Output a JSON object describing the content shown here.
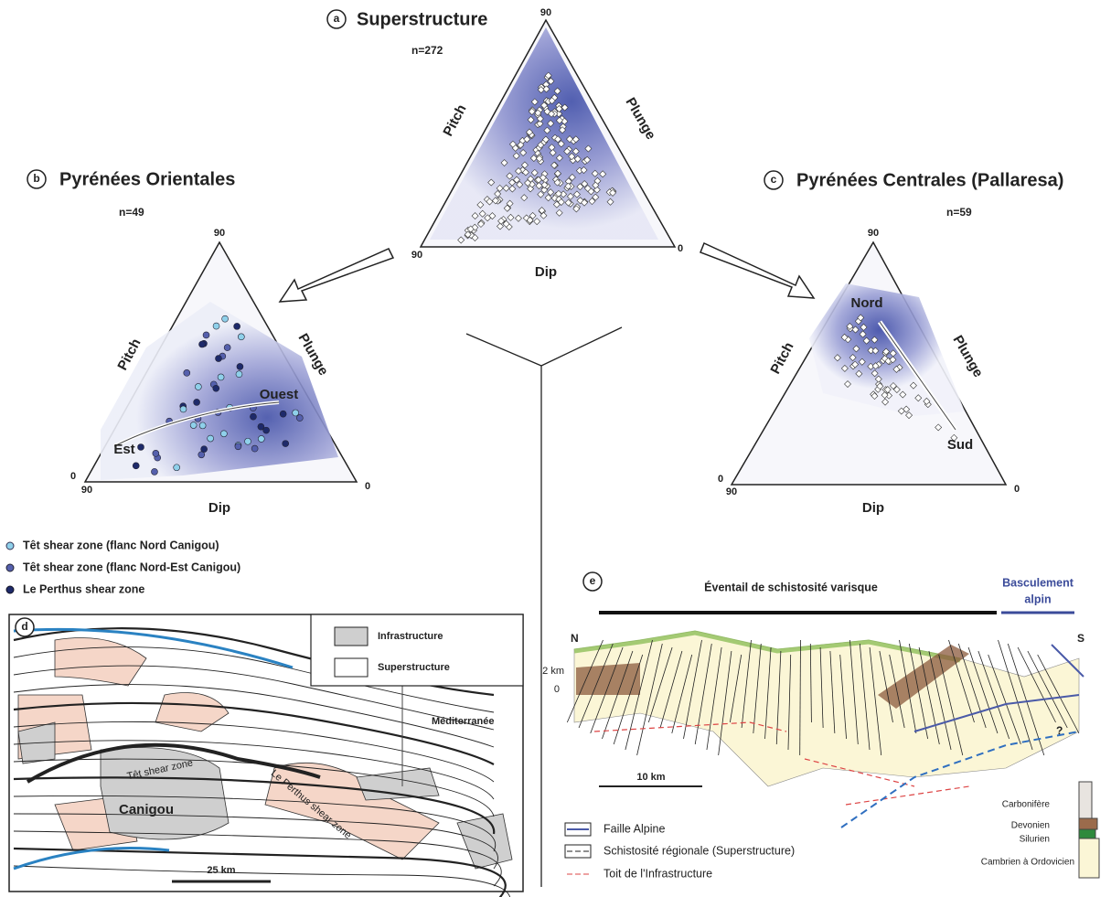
{
  "panel_a": {
    "letter": "a",
    "title": "Superstructure",
    "n": "n=272",
    "axes": {
      "left": "Pitch",
      "right": "Plunge",
      "bottom": "Dip"
    },
    "ticks": {
      "top": "90",
      "left_bottom": "90",
      "right": "0"
    }
  },
  "panel_b": {
    "letter": "b",
    "title": "Pyrénées Orientales",
    "n": "n=49",
    "axes": {
      "left": "Pitch",
      "right": "Plunge",
      "bottom": "Dip"
    },
    "ticks": {
      "top": "90",
      "left_top": "0",
      "left_bottom": "90",
      "right": "0"
    },
    "arrow_labels": [
      "Ouest",
      "Est"
    ]
  },
  "legend_b": [
    "Têt shear zone (flanc Nord Canigou)",
    "Têt shear zone (flanc Nord-Est Canigou)",
    "Le Perthus shear zone"
  ],
  "panel_c": {
    "letter": "c",
    "title": "Pyrénées Centrales (Pallaresa)",
    "n": "n=59",
    "axes": {
      "left": "Pitch",
      "right": "Plunge",
      "bottom": "Dip"
    },
    "ticks": {
      "top": "90",
      "left_top": "0",
      "left_bottom": "90",
      "right": "0"
    },
    "arrow_labels": [
      "Nord",
      "Sud"
    ]
  },
  "panel_d": {
    "letter": "d",
    "legend": [
      "Infrastructure",
      "Superstructure"
    ],
    "labels": [
      "Méditerranée",
      "Têt shear zone",
      "Canigou",
      "Le Perthus shear zone"
    ],
    "scale": "25 km"
  },
  "panel_e": {
    "letter": "e",
    "title": "Éventail de schistosité varisque",
    "title_right": [
      "Basculement",
      "alpin"
    ],
    "north": "N",
    "south": "S",
    "depth": [
      "2 km",
      "0"
    ],
    "question": "?",
    "scale": "10 km",
    "legend": [
      "Faille Alpine",
      "Schistosité régionale (Superstructure)",
      "Toit de l'Infrastructure"
    ],
    "strat": [
      "Carbonifère",
      "Devonien",
      "Silurien",
      "Cambrien à Ordovicien"
    ]
  }
}
